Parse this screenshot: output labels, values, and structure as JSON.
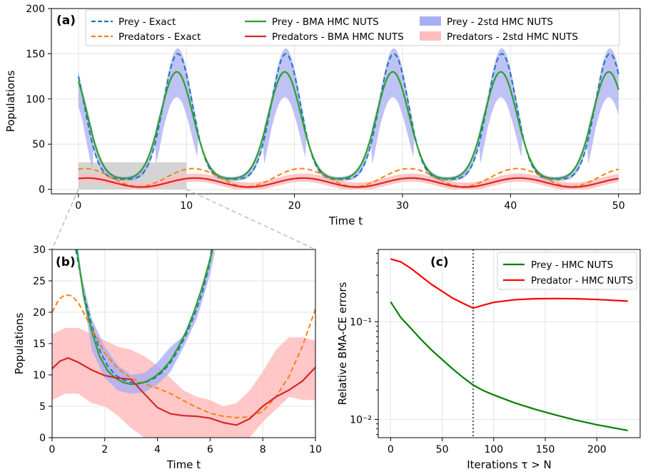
{
  "chart_data": [
    {
      "panel": "(a)",
      "type": "line",
      "xlabel": "Time t",
      "ylabel": "Populations",
      "xlim": [
        -2.5,
        52
      ],
      "ylim": [
        -5,
        200
      ],
      "xticks": [
        0,
        10,
        20,
        30,
        40,
        50
      ],
      "yticks": [
        0,
        50,
        100,
        150,
        200
      ],
      "grid": true,
      "legend_position": "top",
      "zoom_region": {
        "x": [
          0,
          10
        ],
        "y": [
          0,
          30
        ]
      },
      "prey_peaks_exact": [
        9.2,
        19.2,
        29.2,
        39.2,
        49.2
      ],
      "prey_peak_value_exact": 153,
      "prey_peak_value_bma": 133,
      "legend": [
        "Prey - Exact",
        "Predators - Exact",
        "Prey - BMA HMC NUTS",
        "Predators - BMA HMC NUTS",
        "Prey - 2std HMC NUTS",
        "Predators - 2std HMC NUTS"
      ],
      "series": [
        {
          "name": "Prey - Exact",
          "style": "dashed",
          "color": "#1f77b4"
        },
        {
          "name": "Predators - Exact",
          "style": "dashed",
          "color": "#ff7f0e"
        },
        {
          "name": "Prey - BMA HMC NUTS",
          "style": "solid",
          "color": "#2ca02c"
        },
        {
          "name": "Predators - BMA HMC NUTS",
          "style": "solid",
          "color": "#d62728"
        },
        {
          "name": "Prey - 2std HMC NUTS",
          "style": "band",
          "color": "#a9aef2"
        },
        {
          "name": "Predators - 2std HMC NUTS",
          "style": "band",
          "color": "#ffbdbd"
        }
      ]
    },
    {
      "panel": "(b)",
      "type": "line",
      "xlabel": "Time t",
      "ylabel": "Populations",
      "xlim": [
        0,
        10
      ],
      "ylim": [
        0,
        30
      ],
      "xticks": [
        0,
        2,
        4,
        6,
        8,
        10
      ],
      "yticks": [
        0,
        5,
        10,
        15,
        20,
        25,
        30
      ],
      "grid": true,
      "series": [
        {
          "name": "Prey - Exact",
          "x": [
            0.9,
            1.2,
            1.5,
            1.8,
            2.1,
            2.4,
            2.7,
            3.0,
            3.3,
            3.6,
            3.9,
            4.2,
            4.5,
            4.8,
            5.1,
            5.4,
            5.7,
            6.0,
            6.05
          ],
          "y": [
            30,
            23,
            18,
            14,
            11.5,
            10,
            9.2,
            8.8,
            8.7,
            8.9,
            9.5,
            10.5,
            12,
            14,
            16.5,
            19.5,
            23,
            28,
            30
          ]
        },
        {
          "name": "Predators - Exact",
          "x": [
            0,
            0.25,
            0.5,
            0.75,
            1.0,
            1.5,
            2.0,
            2.5,
            3.0,
            3.5,
            4.0,
            4.5,
            5.0,
            5.5,
            6.0,
            6.5,
            7.0,
            7.5,
            8.0,
            8.5,
            9.0,
            9.5,
            10.0
          ],
          "y": [
            20,
            22,
            22.8,
            22.6,
            21.5,
            17.5,
            13.5,
            11,
            9.5,
            8.6,
            7.9,
            7.0,
            5.9,
            4.8,
            3.9,
            3.4,
            3.2,
            3.3,
            4.2,
            6.5,
            9.8,
            14.5,
            20.5
          ]
        },
        {
          "name": "Prey - BMA HMC NUTS",
          "x": [
            0.95,
            1.2,
            1.5,
            1.8,
            2.1,
            2.4,
            2.7,
            3.0,
            3.3,
            3.6,
            3.9,
            4.2,
            4.5,
            4.8,
            5.1,
            5.4,
            5.7,
            6.0,
            6.1
          ],
          "y": [
            30,
            22.5,
            17,
            13,
            10.7,
            9.5,
            8.8,
            8.5,
            8.6,
            9.0,
            9.7,
            10.8,
            12.3,
            14.5,
            17,
            20.2,
            24,
            28.5,
            30
          ]
        },
        {
          "name": "Predators - BMA HMC NUTS",
          "x": [
            0,
            0.3,
            0.6,
            1.0,
            1.5,
            2.0,
            2.5,
            3.0,
            3.5,
            4.0,
            4.5,
            5.0,
            5.5,
            6.0,
            6.5,
            7.0,
            7.5,
            8.0,
            8.5,
            9.0,
            9.5,
            10.0
          ],
          "y": [
            11,
            12.2,
            12.7,
            12,
            10.8,
            9.9,
            9.5,
            9.3,
            7.0,
            4.8,
            3.8,
            3.5,
            3.4,
            3.1,
            2.4,
            2.0,
            3.0,
            5.0,
            6.5,
            7.6,
            9.0,
            11.2
          ]
        },
        {
          "name": "Prey - 2std HMC NUTS",
          "x": [
            0.9,
            1.5,
            2.0,
            2.5,
            3.0,
            3.5,
            4.0,
            4.5,
            5.0,
            5.5,
            6.0,
            6.2
          ],
          "lower": [
            30,
            14,
            9.5,
            7.5,
            7.0,
            7.2,
            8.5,
            10.5,
            14.5,
            19,
            26,
            30
          ],
          "upper": [
            30,
            19,
            14.5,
            11.5,
            10.0,
            10.3,
            12,
            14.5,
            16.2,
            21,
            29,
            30
          ]
        },
        {
          "name": "Predators - 2std HMC NUTS",
          "x": [
            0,
            0.5,
            1.0,
            1.5,
            2.0,
            2.5,
            3.0,
            3.5,
            4.0,
            4.5,
            5.0,
            5.5,
            6.0,
            6.5,
            7.0,
            7.5,
            8.0,
            8.5,
            9.0,
            9.5,
            10.0
          ],
          "lower": [
            6.0,
            7.0,
            7.0,
            5.5,
            5.0,
            3.5,
            1.5,
            0,
            0,
            0,
            0,
            0,
            0,
            0,
            0,
            0,
            2.5,
            4.5,
            6.5,
            6.0,
            6.0
          ],
          "upper": [
            16.5,
            17.5,
            17.5,
            16.5,
            15.5,
            14.5,
            14.0,
            13.0,
            11.5,
            9.5,
            7.5,
            6.5,
            6.0,
            5.0,
            5.5,
            7.5,
            10.5,
            14.0,
            16.0,
            16.0,
            15.5
          ]
        }
      ]
    },
    {
      "panel": "(c)",
      "type": "line",
      "xlabel": "Iterations τ > N",
      "ylabel": "Relative BMA-CE errors",
      "yscale": "log",
      "xlim": [
        -12,
        242
      ],
      "ylim": [
        0.0065,
        0.55
      ],
      "xticks": [
        0,
        50,
        100,
        150,
        200
      ],
      "yticks": [
        0.01,
        0.1
      ],
      "ytick_labels": [
        "10⁻²",
        "10⁻¹"
      ],
      "grid": true,
      "vline_x": 80,
      "legend_position": "top-right",
      "series": [
        {
          "name": "Prey - HMC NUTS",
          "color": "#008000",
          "x": [
            0,
            10,
            20,
            30,
            40,
            50,
            60,
            70,
            80,
            90,
            100,
            120,
            140,
            160,
            180,
            200,
            230
          ],
          "y": [
            0.16,
            0.11,
            0.085,
            0.065,
            0.051,
            0.041,
            0.033,
            0.027,
            0.0225,
            0.0197,
            0.0178,
            0.0148,
            0.0127,
            0.0111,
            0.0098,
            0.0088,
            0.0077
          ]
        },
        {
          "name": "Predator - HMC NUTS",
          "color": "#ff0000",
          "x": [
            0,
            10,
            20,
            30,
            40,
            50,
            60,
            70,
            80,
            90,
            100,
            120,
            140,
            160,
            180,
            200,
            230
          ],
          "y": [
            0.44,
            0.41,
            0.35,
            0.29,
            0.24,
            0.205,
            0.175,
            0.155,
            0.138,
            0.148,
            0.158,
            0.168,
            0.172,
            0.173,
            0.172,
            0.169,
            0.163
          ]
        }
      ]
    }
  ]
}
